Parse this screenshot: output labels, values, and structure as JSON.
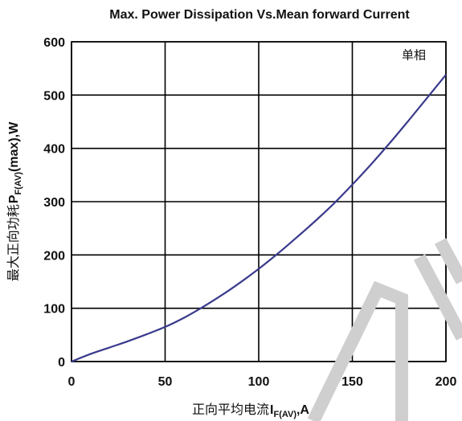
{
  "chart_data": {
    "type": "line",
    "title": "Max. Power Dissipation Vs.Mean forward Current",
    "xlabel": {
      "main": "正向平均电流",
      "symbol": "I",
      "sub": "F(AV)",
      "unit": ",A"
    },
    "ylabel": {
      "main": "最大正向功耗",
      "symbol": "P",
      "sub": "F(AV)",
      "unit": "(max),W"
    },
    "xlim": [
      0,
      200
    ],
    "ylim": [
      0,
      600
    ],
    "x_ticks": [
      0,
      50,
      100,
      150,
      200
    ],
    "y_ticks": [
      0,
      100,
      200,
      300,
      400,
      500,
      600
    ],
    "grid": true,
    "series": [
      {
        "name": "单相",
        "x": [
          0,
          10,
          20,
          30,
          40,
          50,
          60,
          70,
          80,
          90,
          100,
          110,
          120,
          130,
          140,
          150,
          160,
          170,
          180,
          190,
          200
        ],
        "y": [
          0,
          14,
          26,
          38,
          51,
          65,
          82,
          102,
          124,
          148,
          174,
          202,
          232,
          263,
          296,
          332,
          370,
          410,
          452,
          495,
          538
        ]
      }
    ]
  }
}
